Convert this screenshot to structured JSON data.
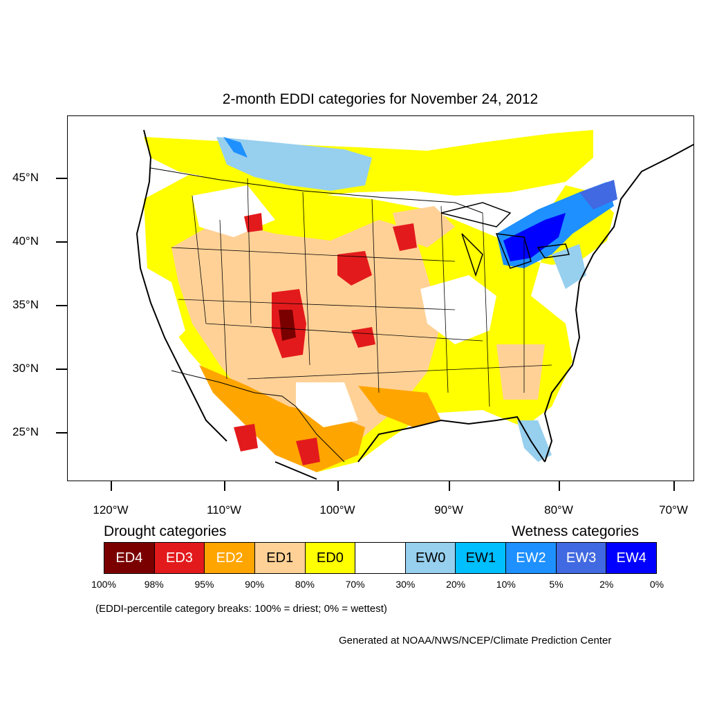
{
  "title": "2-month EDDI categories for November 24, 2012",
  "axes": {
    "lat_labels": [
      "45°N",
      "40°N",
      "35°N",
      "30°N",
      "25°N"
    ],
    "lon_labels": [
      "120°W",
      "110°W",
      "100°W",
      "90°W",
      "80°W",
      "70°W"
    ]
  },
  "legend": {
    "drought_heading": "Drought categories",
    "wetness_heading": "Wetness categories",
    "boxes": [
      {
        "label": "ED4",
        "color": "#7a0000",
        "text_color": "#ffffff"
      },
      {
        "label": "ED3",
        "color": "#e31a1c",
        "text_color": "#ffffff"
      },
      {
        "label": "ED2",
        "color": "#ffa500",
        "text_color": "#ffffff"
      },
      {
        "label": "ED1",
        "color": "#ffd196",
        "text_color": "#000000"
      },
      {
        "label": "ED0",
        "color": "#ffff00",
        "text_color": "#000000"
      },
      {
        "label": "",
        "color": "#ffffff",
        "text_color": "#000000"
      },
      {
        "label": "EW0",
        "color": "#97cfee",
        "text_color": "#000000"
      },
      {
        "label": "EW1",
        "color": "#00bfff",
        "text_color": "#000000"
      },
      {
        "label": "EW2",
        "color": "#1e90ff",
        "text_color": "#ffffff"
      },
      {
        "label": "EW3",
        "color": "#4169e1",
        "text_color": "#ffffff"
      },
      {
        "label": "EW4",
        "color": "#0000ff",
        "text_color": "#ffffff"
      }
    ],
    "breaks": [
      "100%",
      "98%",
      "95%",
      "90%",
      "80%",
      "70%",
      "30%",
      "20%",
      "10%",
      "5%",
      "2%",
      "0%"
    ]
  },
  "note": "(EDDI-percentile category breaks: 100% = driest; 0% = wettest)",
  "credit": "Generated at NOAA/NWS/NCEP/Climate Prediction Center"
}
